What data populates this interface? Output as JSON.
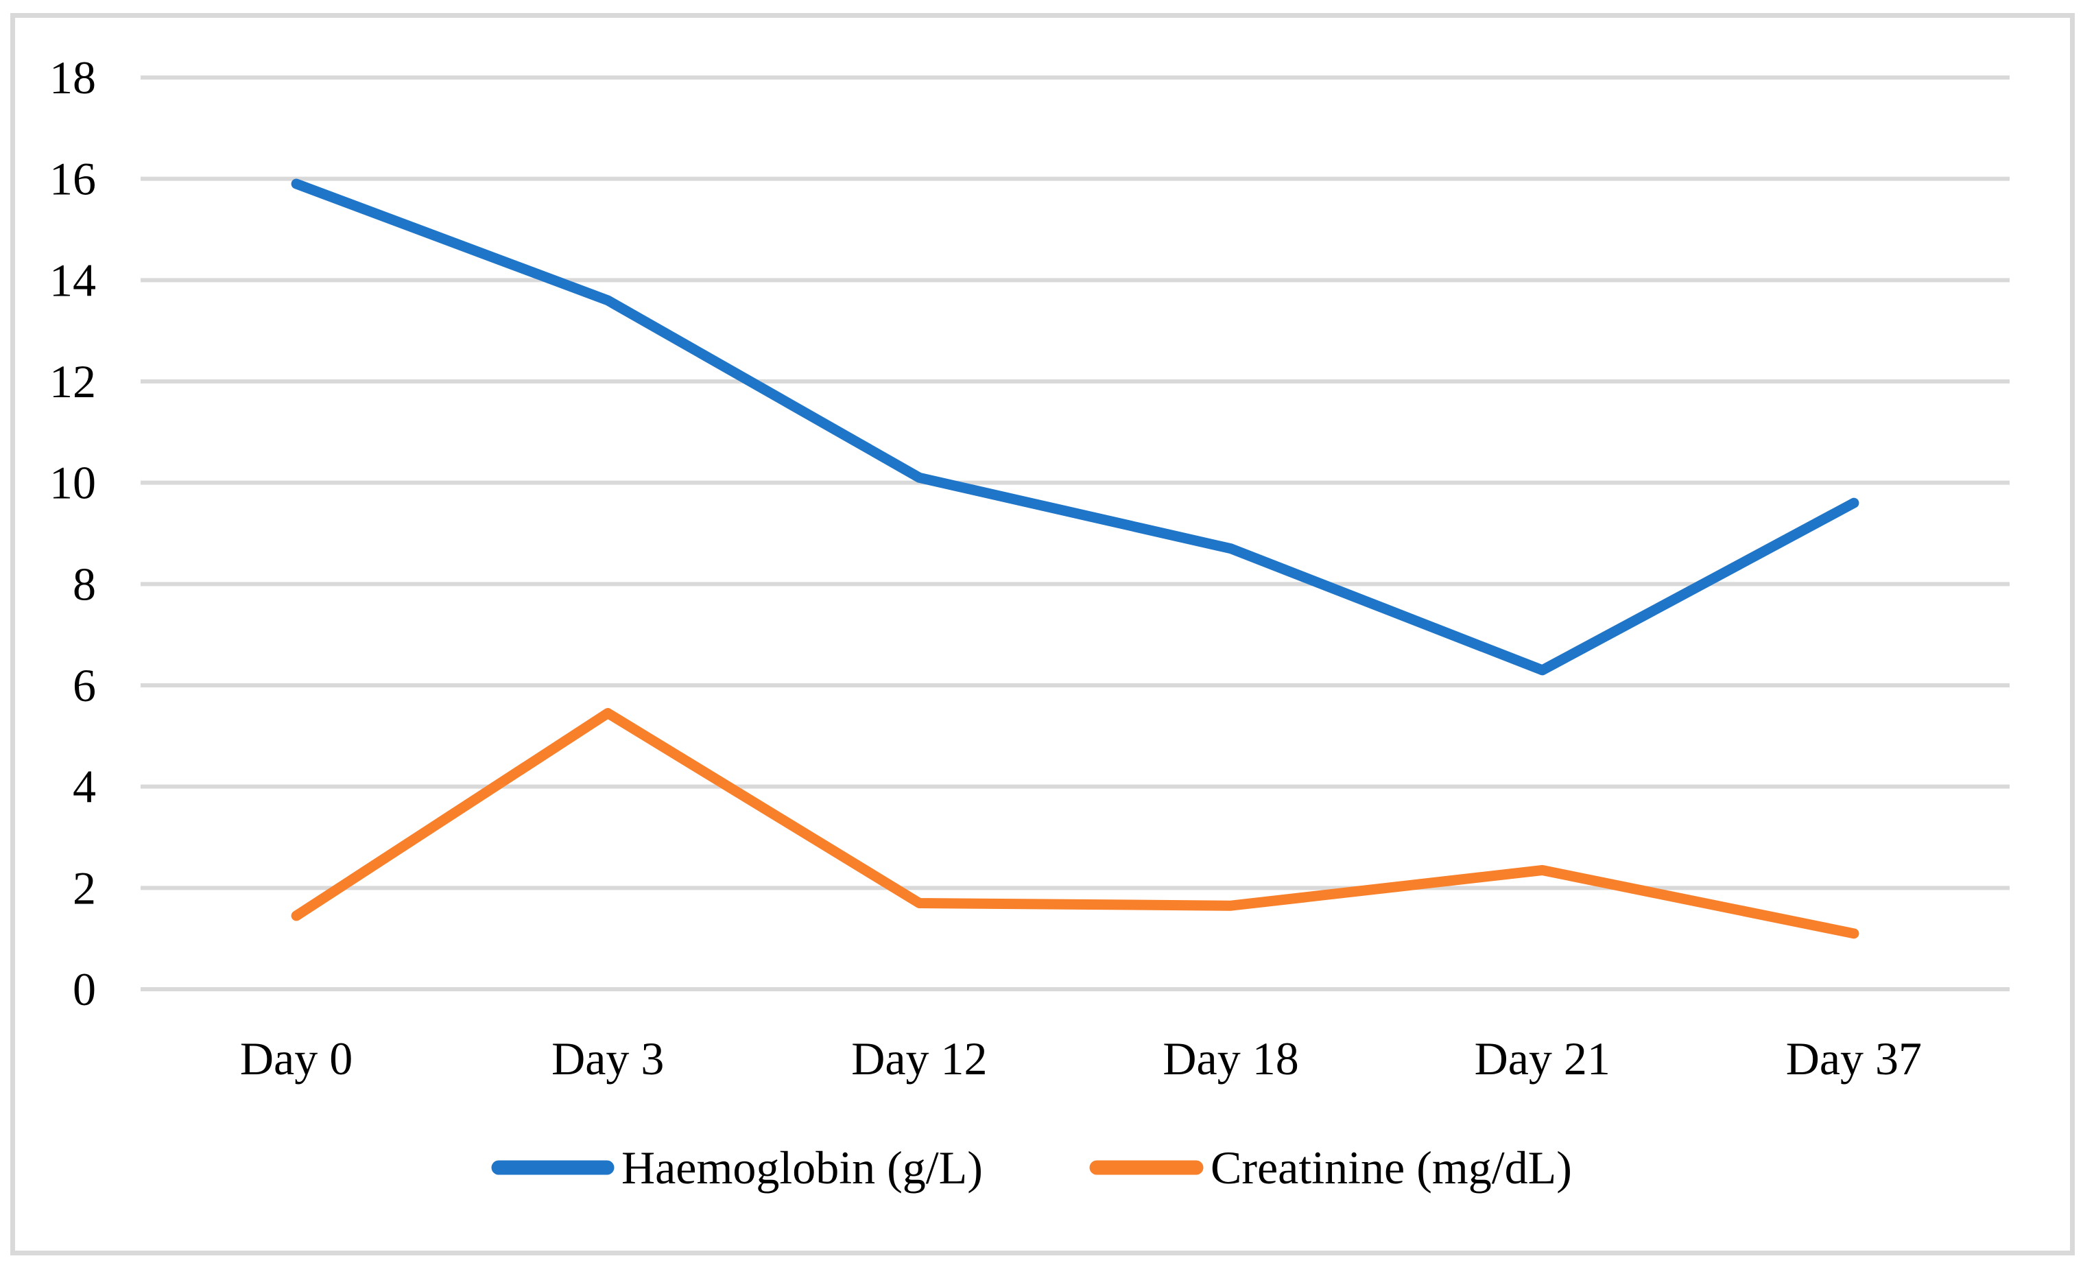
{
  "figure": {
    "background": "#ffffff",
    "border_color": "#d9d9d9"
  },
  "chart_data": {
    "type": "line",
    "title": "",
    "xlabel": "",
    "ylabel": "",
    "categories": [
      "Day 0",
      "Day 3",
      "Day 12",
      "Day 18",
      "Day 21",
      "Day 37"
    ],
    "series": [
      {
        "name": "Haemoglobin (g/L)",
        "color": "#1f75c8",
        "values": [
          15.9,
          13.6,
          10.1,
          8.7,
          6.3,
          9.6
        ]
      },
      {
        "name": "Creatinine (mg/dL)",
        "color": "#f8802b",
        "values": [
          1.45,
          5.45,
          1.7,
          1.65,
          2.35,
          1.1
        ]
      }
    ],
    "ylim": [
      0,
      18
    ],
    "yticks": [
      0,
      2,
      4,
      6,
      8,
      10,
      12,
      14,
      16,
      18
    ],
    "grid": true,
    "gridline_color": "#d9d9d9",
    "legend_position": "bottom",
    "line_width": 15
  }
}
